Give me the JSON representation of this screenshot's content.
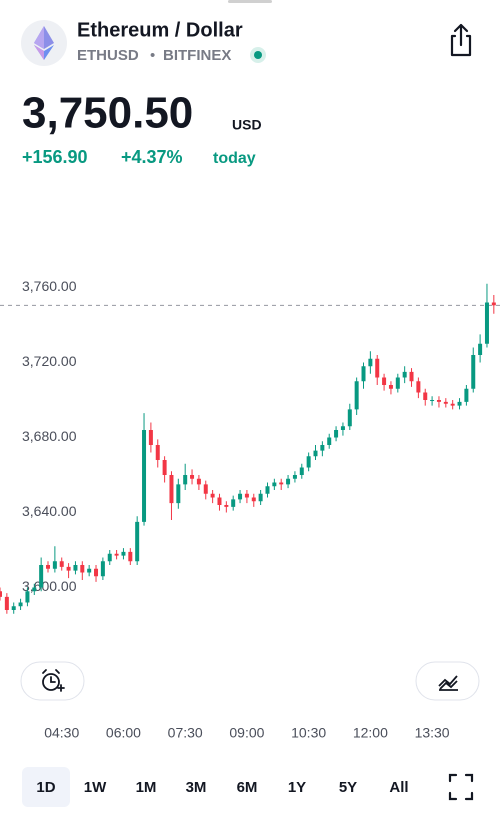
{
  "header": {
    "title": "Ethereum / Dollar",
    "symbol": "ETHUSD",
    "separator": "•",
    "exchange": "BITFINEX",
    "price": "3,750.50",
    "currency": "USD",
    "change": "+156.90",
    "change_percent": "+4.37%",
    "change_label": "today"
  },
  "chart_data": {
    "type": "candlestick",
    "x": [
      180,
      190,
      200,
      210,
      220,
      230,
      240,
      250,
      260,
      270,
      280,
      290,
      300,
      310,
      320,
      330,
      340,
      350,
      360,
      370,
      380,
      390,
      400,
      410,
      420,
      430,
      440,
      450,
      460,
      470,
      480,
      490,
      500,
      510,
      520,
      530,
      540,
      550,
      560,
      570,
      580,
      590,
      600,
      610,
      620,
      630,
      640,
      650,
      660,
      670,
      680,
      690,
      700,
      710,
      720,
      730,
      740,
      750,
      760,
      770,
      780,
      790,
      800,
      810,
      820,
      830,
      840,
      850,
      860,
      870,
      880,
      890,
      900
    ],
    "open": [
      3598,
      3595,
      3588,
      3590,
      3592,
      3598,
      3600,
      3612,
      3610,
      3614,
      3611,
      3609,
      3612,
      3608,
      3610,
      3606,
      3614,
      3618,
      3617,
      3619,
      3614,
      3635,
      3684,
      3676,
      3668,
      3660,
      3645,
      3655,
      3660,
      3658,
      3655,
      3650,
      3648,
      3644,
      3643,
      3647,
      3650,
      3648,
      3646,
      3650,
      3654,
      3656,
      3655,
      3658,
      3660,
      3664,
      3670,
      3673,
      3676,
      3680,
      3684,
      3686,
      3695,
      3710,
      3718,
      3722,
      3712,
      3708,
      3706,
      3712,
      3715,
      3710,
      3704,
      3700,
      3700,
      3699,
      3698,
      3697,
      3699,
      3706,
      3724,
      3730,
      3752
    ],
    "high": [
      3600,
      3597,
      3592,
      3594,
      3600,
      3602,
      3616,
      3614,
      3622,
      3616,
      3613,
      3614,
      3614,
      3612,
      3612,
      3616,
      3620,
      3620,
      3621,
      3621,
      3638,
      3693,
      3688,
      3679,
      3670,
      3662,
      3658,
      3666,
      3663,
      3660,
      3657,
      3652,
      3650,
      3646,
      3649,
      3652,
      3652,
      3650,
      3652,
      3656,
      3658,
      3658,
      3660,
      3662,
      3666,
      3672,
      3676,
      3678,
      3682,
      3686,
      3688,
      3698,
      3712,
      3720,
      3726,
      3724,
      3714,
      3710,
      3714,
      3718,
      3717,
      3712,
      3706,
      3702,
      3702,
      3701,
      3700,
      3701,
      3708,
      3728,
      3735,
      3762,
      3756
    ],
    "low": [
      3593,
      3586,
      3586,
      3588,
      3590,
      3596,
      3598,
      3608,
      3608,
      3609,
      3605,
      3607,
      3604,
      3606,
      3603,
      3604,
      3612,
      3615,
      3615,
      3612,
      3612,
      3633,
      3672,
      3664,
      3656,
      3636,
      3642,
      3652,
      3655,
      3652,
      3647,
      3645,
      3641,
      3640,
      3641,
      3645,
      3645,
      3643,
      3644,
      3648,
      3652,
      3652,
      3653,
      3656,
      3658,
      3662,
      3668,
      3670,
      3674,
      3678,
      3681,
      3684,
      3692,
      3706,
      3714,
      3708,
      3705,
      3703,
      3704,
      3709,
      3707,
      3701,
      3697,
      3697,
      3696,
      3696,
      3695,
      3695,
      3697,
      3704,
      3720,
      3728,
      3746
    ],
    "close": [
      3595,
      3588,
      3590,
      3592,
      3598,
      3600,
      3612,
      3610,
      3614,
      3611,
      3609,
      3612,
      3608,
      3610,
      3606,
      3614,
      3618,
      3617,
      3619,
      3614,
      3635,
      3684,
      3676,
      3668,
      3660,
      3645,
      3655,
      3660,
      3658,
      3655,
      3650,
      3648,
      3644,
      3643,
      3647,
      3650,
      3648,
      3646,
      3650,
      3654,
      3656,
      3655,
      3658,
      3660,
      3664,
      3670,
      3673,
      3676,
      3680,
      3684,
      3686,
      3695,
      3710,
      3718,
      3722,
      3712,
      3708,
      3706,
      3712,
      3715,
      3710,
      3704,
      3700,
      3700,
      3699,
      3698,
      3697,
      3699,
      3706,
      3724,
      3730,
      3752,
      3750.5
    ],
    "up_color": "#089981",
    "down_color": "#f23645",
    "xlim": [
      180,
      909
    ],
    "ylim": [
      3572,
      3780
    ],
    "xticks": [
      {
        "value": 270,
        "label": "04:30"
      },
      {
        "value": 360,
        "label": "06:00"
      },
      {
        "value": 450,
        "label": "07:30"
      },
      {
        "value": 540,
        "label": "09:00"
      },
      {
        "value": 630,
        "label": "10:30"
      },
      {
        "value": 720,
        "label": "12:00"
      },
      {
        "value": 810,
        "label": "13:30"
      }
    ],
    "yticks": [
      {
        "value": 3600,
        "label": "3,600.00"
      },
      {
        "value": 3640,
        "label": "3,640.00"
      },
      {
        "value": 3680,
        "label": "3,680.00"
      },
      {
        "value": 3720,
        "label": "3,720.00"
      },
      {
        "value": 3760,
        "label": "3,760.00"
      }
    ],
    "grid": false
  },
  "timeframes": {
    "options": [
      "1D",
      "1W",
      "1M",
      "3M",
      "6M",
      "1Y",
      "5Y",
      "All"
    ],
    "selected": 0
  }
}
